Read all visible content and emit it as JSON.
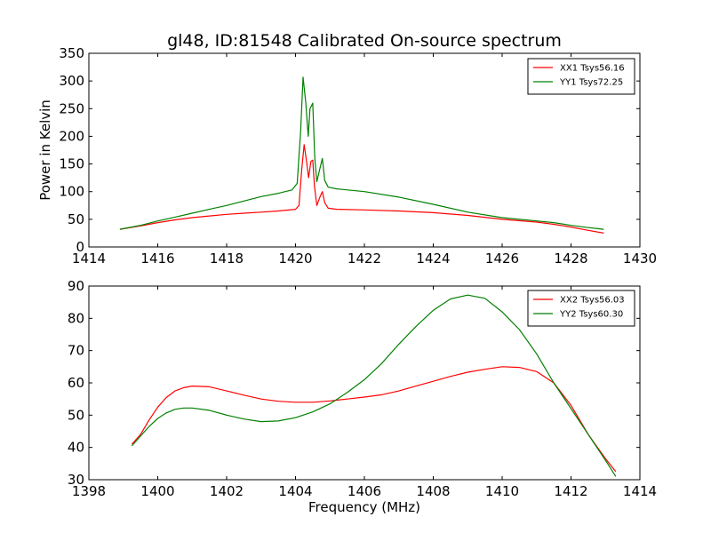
{
  "chart_data": {
    "title": "gl48, ID:81548 Calibrated On-source spectrum",
    "charts": [
      {
        "type": "line",
        "xlabel": "",
        "ylabel": "Power in Kelvin",
        "xlim": [
          1414,
          1430
        ],
        "ylim": [
          0,
          350
        ],
        "xticks": [
          "1414",
          "1416",
          "1418",
          "1420",
          "1422",
          "1424",
          "1426",
          "1428",
          "1430"
        ],
        "yticks": [
          "0",
          "50",
          "100",
          "150",
          "200",
          "250",
          "300",
          "350"
        ],
        "legend_position": "top-right",
        "series": [
          {
            "name": "XX1 Tsys56.16",
            "color": "#ff0000",
            "points": [
              [
                1414.9,
                32
              ],
              [
                1415.5,
                38
              ],
              [
                1416.0,
                44
              ],
              [
                1416.5,
                49
              ],
              [
                1417.0,
                53
              ],
              [
                1417.5,
                56
              ],
              [
                1418.0,
                59
              ],
              [
                1418.5,
                61
              ],
              [
                1419.0,
                63
              ],
              [
                1419.5,
                65
              ],
              [
                1420.0,
                68
              ],
              [
                1420.1,
                75
              ],
              [
                1420.18,
                140
              ],
              [
                1420.25,
                185
              ],
              [
                1420.32,
                155
              ],
              [
                1420.38,
                125
              ],
              [
                1420.45,
                155
              ],
              [
                1420.5,
                157
              ],
              [
                1420.55,
                110
              ],
              [
                1420.62,
                75
              ],
              [
                1420.72,
                92
              ],
              [
                1420.78,
                100
              ],
              [
                1420.85,
                80
              ],
              [
                1420.95,
                70
              ],
              [
                1421.2,
                68
              ],
              [
                1422.0,
                67
              ],
              [
                1423.0,
                65
              ],
              [
                1424.0,
                62
              ],
              [
                1425.0,
                57
              ],
              [
                1426.0,
                50
              ],
              [
                1427.0,
                45
              ],
              [
                1427.5,
                41
              ],
              [
                1428.0,
                36
              ],
              [
                1428.5,
                30
              ],
              [
                1428.95,
                25
              ]
            ]
          },
          {
            "name": "YY1 Tsys72.25",
            "color": "#008000",
            "points": [
              [
                1414.9,
                32
              ],
              [
                1415.5,
                39
              ],
              [
                1416.0,
                47
              ],
              [
                1416.5,
                54
              ],
              [
                1417.0,
                61
              ],
              [
                1417.5,
                68
              ],
              [
                1418.0,
                75
              ],
              [
                1418.5,
                83
              ],
              [
                1419.0,
                91
              ],
              [
                1419.5,
                97
              ],
              [
                1419.9,
                103
              ],
              [
                1420.05,
                115
              ],
              [
                1420.15,
                210
              ],
              [
                1420.22,
                307
              ],
              [
                1420.3,
                260
              ],
              [
                1420.37,
                200
              ],
              [
                1420.42,
                250
              ],
              [
                1420.5,
                260
              ],
              [
                1420.56,
                160
              ],
              [
                1420.62,
                118
              ],
              [
                1420.72,
                145
              ],
              [
                1420.78,
                160
              ],
              [
                1420.85,
                120
              ],
              [
                1420.95,
                108
              ],
              [
                1421.2,
                105
              ],
              [
                1422.0,
                100
              ],
              [
                1423.0,
                90
              ],
              [
                1424.0,
                77
              ],
              [
                1425.0,
                63
              ],
              [
                1426.0,
                53
              ],
              [
                1427.0,
                47
              ],
              [
                1427.5,
                44
              ],
              [
                1428.0,
                39
              ],
              [
                1428.5,
                35
              ],
              [
                1428.95,
                32
              ]
            ]
          }
        ]
      },
      {
        "type": "line",
        "xlabel": "Frequency (MHz)",
        "ylabel": "",
        "xlim": [
          1398,
          1414
        ],
        "ylim": [
          30,
          90
        ],
        "xticks": [
          "1398",
          "1400",
          "1402",
          "1404",
          "1406",
          "1408",
          "1410",
          "1412",
          "1414"
        ],
        "yticks": [
          "30",
          "40",
          "50",
          "60",
          "70",
          "80",
          "90"
        ],
        "legend_position": "top-right",
        "series": [
          {
            "name": "XX2 Tsys56.03",
            "color": "#ff0000",
            "points": [
              [
                1399.25,
                41
              ],
              [
                1399.5,
                44
              ],
              [
                1399.75,
                48.5
              ],
              [
                1400.0,
                52.5
              ],
              [
                1400.25,
                55.5
              ],
              [
                1400.5,
                57.5
              ],
              [
                1400.75,
                58.5
              ],
              [
                1401.0,
                59
              ],
              [
                1401.5,
                58.8
              ],
              [
                1402.0,
                57.5
              ],
              [
                1402.5,
                56.2
              ],
              [
                1403.0,
                55
              ],
              [
                1403.5,
                54.3
              ],
              [
                1404.0,
                54
              ],
              [
                1404.5,
                54
              ],
              [
                1405.0,
                54.4
              ],
              [
                1405.5,
                55
              ],
              [
                1406.0,
                55.6
              ],
              [
                1406.5,
                56.3
              ],
              [
                1407.0,
                57.5
              ],
              [
                1407.5,
                59
              ],
              [
                1408.0,
                60.5
              ],
              [
                1408.5,
                62
              ],
              [
                1409.0,
                63.3
              ],
              [
                1409.5,
                64.2
              ],
              [
                1410.0,
                65
              ],
              [
                1410.5,
                64.8
              ],
              [
                1411.0,
                63.5
              ],
              [
                1411.5,
                60
              ],
              [
                1412.0,
                53
              ],
              [
                1412.5,
                44
              ],
              [
                1413.0,
                36.5
              ],
              [
                1413.3,
                32.5
              ]
            ]
          },
          {
            "name": "YY2 Tsys60.30",
            "color": "#008000",
            "points": [
              [
                1399.25,
                40.5
              ],
              [
                1399.5,
                43.5
              ],
              [
                1399.75,
                46.5
              ],
              [
                1400.0,
                49
              ],
              [
                1400.25,
                50.7
              ],
              [
                1400.5,
                51.8
              ],
              [
                1400.75,
                52.2
              ],
              [
                1401.0,
                52.2
              ],
              [
                1401.5,
                51.5
              ],
              [
                1402.0,
                50
              ],
              [
                1402.5,
                48.8
              ],
              [
                1403.0,
                48
              ],
              [
                1403.5,
                48.2
              ],
              [
                1404.0,
                49.2
              ],
              [
                1404.5,
                51
              ],
              [
                1405.0,
                53.5
              ],
              [
                1405.5,
                57
              ],
              [
                1406.0,
                61
              ],
              [
                1406.5,
                66
              ],
              [
                1407.0,
                72
              ],
              [
                1407.5,
                77.5
              ],
              [
                1408.0,
                82.5
              ],
              [
                1408.5,
                86
              ],
              [
                1409.0,
                87.2
              ],
              [
                1409.5,
                86.2
              ],
              [
                1410.0,
                82
              ],
              [
                1410.5,
                76.5
              ],
              [
                1411.0,
                69
              ],
              [
                1411.5,
                60
              ],
              [
                1412.0,
                52
              ],
              [
                1412.5,
                44
              ],
              [
                1413.0,
                36
              ],
              [
                1413.3,
                31
              ]
            ]
          }
        ]
      }
    ]
  }
}
